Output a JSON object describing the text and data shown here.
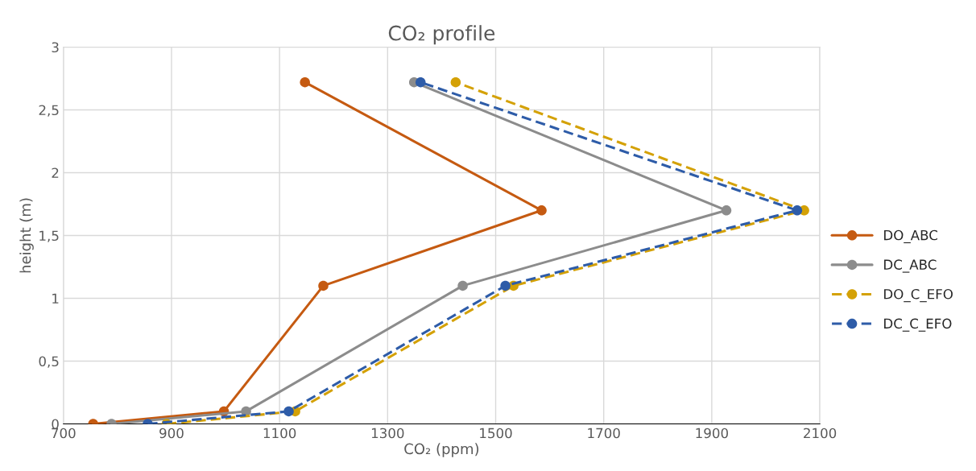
{
  "chart_data": {
    "type": "line",
    "title": "CO₂ profile",
    "xlabel": "CO₂ (ppm)",
    "ylabel": "height (m)",
    "xlim": [
      700,
      2100
    ],
    "xticks": [
      700,
      900,
      1100,
      1300,
      1500,
      1700,
      1900,
      2100
    ],
    "ylim": [
      0,
      3
    ],
    "yticks": [
      0,
      {
        "value": 0.5,
        "label": "0,5"
      },
      1,
      {
        "value": 1.5,
        "label": "1,5"
      },
      2,
      {
        "value": 2.5,
        "label": "2,5"
      },
      3
    ],
    "grid": true,
    "legend": "right",
    "marker": "circle",
    "series": [
      {
        "name": "DO_ABC",
        "color": "#c55a11",
        "line_style": "solid",
        "x": [
          755,
          997,
          1181,
          1585,
          1147
        ],
        "values": [
          0,
          0.1,
          1.1,
          1.7,
          2.72
        ]
      },
      {
        "name": "DC_ABC",
        "color": "#8c8c8c",
        "line_style": "solid",
        "x": [
          789,
          1038,
          1439,
          1927,
          1349
        ],
        "values": [
          0,
          0.1,
          1.1,
          1.7,
          2.72
        ]
      },
      {
        "name": "DO_C_EFO",
        "color": "#d4a106",
        "line_style": "dashed",
        "x": [
          891,
          1129,
          1533,
          2071,
          1426
        ],
        "values": [
          0,
          0.1,
          1.1,
          1.7,
          2.72
        ]
      },
      {
        "name": "DC_C_EFO",
        "color": "#2e5ca8",
        "line_style": "dashed",
        "x": [
          856,
          1117,
          1518,
          2058,
          1361
        ],
        "values": [
          0,
          0.1,
          1.1,
          1.7,
          2.72
        ]
      }
    ]
  }
}
